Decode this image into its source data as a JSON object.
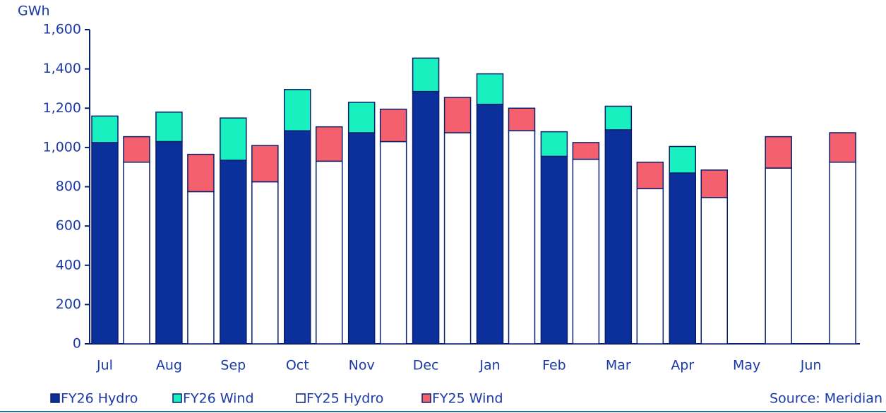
{
  "chart_data": {
    "type": "stacked-grouped-bar",
    "y_label": "GWh",
    "source": "Source: Meridian",
    "categories": [
      "Jul",
      "Aug",
      "Sep",
      "Oct",
      "Nov",
      "Dec",
      "Jan",
      "Feb",
      "Mar",
      "Apr",
      "May",
      "Jun"
    ],
    "series": [
      {
        "name": "FY26 Hydro",
        "color": "#0b2f9b",
        "stack": 0,
        "values": [
          1025,
          1030,
          935,
          1085,
          1075,
          1285,
          1220,
          955,
          1090,
          870,
          null,
          null
        ]
      },
      {
        "name": "FY26 Wind",
        "color": "#19f0c0",
        "stack": 0,
        "values": [
          135,
          150,
          215,
          210,
          155,
          170,
          155,
          125,
          120,
          135,
          null,
          null
        ]
      },
      {
        "name": "FY25 Hydro",
        "color": "#ffffff",
        "stack": 1,
        "values": [
          925,
          775,
          825,
          930,
          1030,
          1075,
          1085,
          940,
          790,
          745,
          895,
          925
        ]
      },
      {
        "name": "FY25 Wind",
        "color": "#f5606e",
        "stack": 1,
        "values": [
          130,
          190,
          185,
          175,
          165,
          180,
          115,
          85,
          135,
          140,
          160,
          150
        ]
      }
    ],
    "ylim": [
      0,
      1600
    ],
    "yticks": [
      0,
      200,
      400,
      600,
      800,
      {
        "value": 1000,
        "label": "1,000"
      },
      {
        "value": 1200,
        "label": "1,200"
      },
      {
        "value": 1400,
        "label": "1,400"
      },
      {
        "value": 1600,
        "label": "1,600"
      }
    ]
  }
}
